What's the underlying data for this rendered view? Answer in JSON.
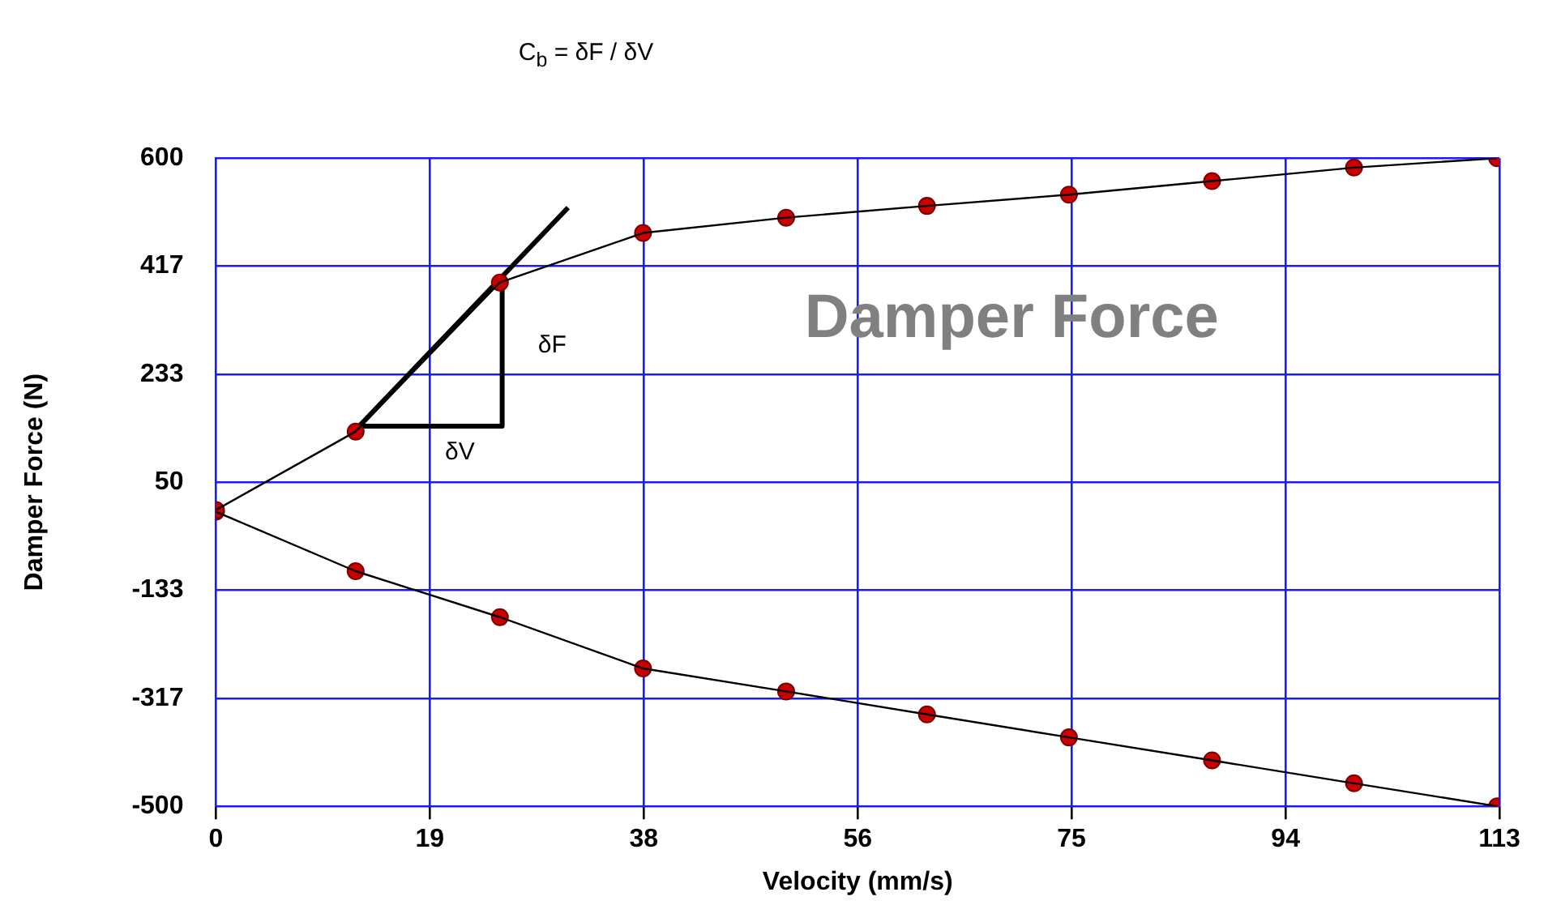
{
  "chart_data": {
    "type": "line",
    "title": "C$_{b}$  =  δF / δV",
    "xlabel": "Velocity (mm/s)",
    "ylabel": "Damper Force (N)",
    "xlim": [
      0,
      113
    ],
    "xticks": [
      0,
      {
        "value": 18.83,
        "label": "19"
      },
      {
        "value": 37.67,
        "label": "38"
      },
      {
        "value": 56.5,
        "label": "56"
      },
      {
        "value": 75.33,
        "label": "75"
      },
      {
        "value": 94.17,
        "label": "94"
      },
      113
    ],
    "ylim": [
      -500,
      600
    ],
    "yticks": [
      -500,
      {
        "value": -316.7,
        "label": "-317"
      },
      {
        "value": -133.3,
        "label": "-133"
      },
      50,
      {
        "value": 233.3,
        "label": "233"
      },
      {
        "value": 416.7,
        "label": "417"
      },
      600
    ],
    "grid": true,
    "legend": false,
    "series": [
      {
        "color": "#000000",
        "marker": "none",
        "x": [
          0,
          12.3,
          25.0,
          37.6,
          50.2,
          62.6,
          75.1,
          87.7,
          100.2,
          112.8
        ],
        "values": [
          3,
          136,
          389,
          473,
          499,
          519,
          538,
          561,
          584,
          600
        ]
      },
      {
        "color": "#000000",
        "marker": "none",
        "x": [
          0,
          12.3,
          25.0,
          37.6,
          50.2,
          62.6,
          75.1,
          87.7,
          100.2,
          112.8
        ],
        "values": [
          0,
          -101,
          -179,
          -266,
          -305,
          -344,
          -383,
          -422,
          -461,
          -500
        ]
      },
      {
        "type": "scatter",
        "color": "#cc0000",
        "marker": "circle",
        "x": [
          0,
          12.3,
          25.0,
          37.6,
          50.2,
          62.6,
          75.1,
          87.7,
          100.2,
          112.8
        ],
        "values": [
          3,
          136,
          389,
          473,
          499,
          519,
          538,
          561,
          584,
          600
        ]
      },
      {
        "type": "scatter",
        "color": "#cc0000",
        "marker": "circle",
        "x": [
          0,
          12.3,
          25.0,
          37.6,
          50.2,
          62.6,
          75.1,
          87.7,
          100.2,
          112.8
        ],
        "values": [
          0,
          -101,
          -179,
          -266,
          -305,
          -344,
          -383,
          -422,
          -461,
          -500
        ]
      },
      {
        "color": "#000000",
        "marker": "none",
        "x": [
          12.6,
          31.0
        ],
        "values": [
          145,
          516
        ]
      },
      {
        "color": "#000000",
        "marker": "none",
        "x": [
          12.6,
          25.2,
          25.2
        ],
        "values": [
          145,
          145,
          389
        ]
      }
    ],
    "annotations": [
      "δF",
      "δV",
      "Damper Force"
    ]
  }
}
